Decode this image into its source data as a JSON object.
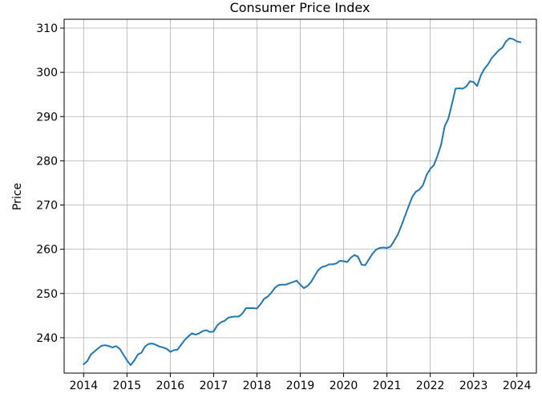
{
  "chart_data": {
    "type": "line",
    "title": "Consumer Price Index",
    "xlabel": "",
    "ylabel": "Price",
    "xlim": [
      2013.55,
      2024.45
    ],
    "ylim": [
      232.0,
      312.0
    ],
    "x_ticks": [
      "2014",
      "2015",
      "2016",
      "2017",
      "2018",
      "2019",
      "2020",
      "2021",
      "2022",
      "2023",
      "2024"
    ],
    "y_ticks": [
      "240",
      "250",
      "260",
      "270",
      "280",
      "290",
      "300",
      "310"
    ],
    "grid": true,
    "line_color": "#1f77b4",
    "series": [
      {
        "name": "",
        "points": [
          [
            "2014-01",
            234.0
          ],
          [
            "2014-02",
            234.7
          ],
          [
            "2014-03",
            236.2
          ],
          [
            "2014-04",
            236.9
          ],
          [
            "2014-05",
            237.6
          ],
          [
            "2014-06",
            238.2
          ],
          [
            "2014-07",
            238.3
          ],
          [
            "2014-08",
            238.1
          ],
          [
            "2014-09",
            237.8
          ],
          [
            "2014-10",
            238.1
          ],
          [
            "2014-11",
            237.5
          ],
          [
            "2014-12",
            236.2
          ],
          [
            "2015-01",
            234.9
          ],
          [
            "2015-02",
            233.8
          ],
          [
            "2015-03",
            234.8
          ],
          [
            "2015-04",
            236.2
          ],
          [
            "2015-05",
            236.6
          ],
          [
            "2015-06",
            238.0
          ],
          [
            "2015-07",
            238.6
          ],
          [
            "2015-08",
            238.7
          ],
          [
            "2015-09",
            238.4
          ],
          [
            "2015-10",
            238.0
          ],
          [
            "2015-11",
            237.8
          ],
          [
            "2015-12",
            237.5
          ],
          [
            "2016-01",
            236.8
          ],
          [
            "2016-02",
            237.2
          ],
          [
            "2016-03",
            237.3
          ],
          [
            "2016-04",
            238.4
          ],
          [
            "2016-05",
            239.5
          ],
          [
            "2016-06",
            240.3
          ],
          [
            "2016-07",
            241.0
          ],
          [
            "2016-08",
            240.7
          ],
          [
            "2016-09",
            241.0
          ],
          [
            "2016-10",
            241.5
          ],
          [
            "2016-11",
            241.7
          ],
          [
            "2016-12",
            241.3
          ],
          [
            "2017-01",
            241.4
          ],
          [
            "2017-02",
            242.8
          ],
          [
            "2017-03",
            243.5
          ],
          [
            "2017-04",
            243.8
          ],
          [
            "2017-05",
            244.5
          ],
          [
            "2017-06",
            244.7
          ],
          [
            "2017-07",
            244.8
          ],
          [
            "2017-08",
            244.8
          ],
          [
            "2017-09",
            245.5
          ],
          [
            "2017-10",
            246.7
          ],
          [
            "2017-11",
            246.7
          ],
          [
            "2017-12",
            246.7
          ],
          [
            "2018-01",
            246.6
          ],
          [
            "2018-02",
            247.6
          ],
          [
            "2018-03",
            248.8
          ],
          [
            "2018-04",
            249.3
          ],
          [
            "2018-05",
            250.2
          ],
          [
            "2018-06",
            251.3
          ],
          [
            "2018-07",
            251.9
          ],
          [
            "2018-08",
            252.0
          ],
          [
            "2018-09",
            252.0
          ],
          [
            "2018-10",
            252.3
          ],
          [
            "2018-11",
            252.6
          ],
          [
            "2018-12",
            252.9
          ],
          [
            "2019-01",
            252.0
          ],
          [
            "2019-02",
            251.2
          ],
          [
            "2019-03",
            251.7
          ],
          [
            "2019-04",
            252.6
          ],
          [
            "2019-05",
            254.0
          ],
          [
            "2019-06",
            255.3
          ],
          [
            "2019-07",
            256.0
          ],
          [
            "2019-08",
            256.2
          ],
          [
            "2019-09",
            256.6
          ],
          [
            "2019-10",
            256.6
          ],
          [
            "2019-11",
            256.8
          ],
          [
            "2019-12",
            257.4
          ],
          [
            "2020-01",
            257.3
          ],
          [
            "2020-02",
            257.1
          ],
          [
            "2020-03",
            258.1
          ],
          [
            "2020-04",
            258.7
          ],
          [
            "2020-05",
            258.3
          ],
          [
            "2020-06",
            256.5
          ],
          [
            "2020-07",
            256.4
          ],
          [
            "2020-08",
            257.7
          ],
          [
            "2020-09",
            259.0
          ],
          [
            "2020-10",
            259.9
          ],
          [
            "2020-11",
            260.3
          ],
          [
            "2020-12",
            260.4
          ],
          [
            "2021-01",
            260.3
          ],
          [
            "2021-02",
            260.6
          ],
          [
            "2021-03",
            261.9
          ],
          [
            "2021-04",
            263.3
          ],
          [
            "2021-05",
            265.3
          ],
          [
            "2021-06",
            267.5
          ],
          [
            "2021-07",
            269.7
          ],
          [
            "2021-08",
            271.8
          ],
          [
            "2021-09",
            273.0
          ],
          [
            "2021-10",
            273.5
          ],
          [
            "2021-11",
            274.5
          ],
          [
            "2021-12",
            276.8
          ],
          [
            "2022-01",
            278.2
          ],
          [
            "2022-02",
            279.0
          ],
          [
            "2022-03",
            281.1
          ],
          [
            "2022-04",
            283.6
          ],
          [
            "2022-05",
            287.8
          ],
          [
            "2022-06",
            289.5
          ],
          [
            "2022-07",
            292.8
          ],
          [
            "2022-08",
            296.3
          ],
          [
            "2022-09",
            296.4
          ],
          [
            "2022-10",
            296.3
          ],
          [
            "2022-11",
            296.8
          ],
          [
            "2022-12",
            298.0
          ],
          [
            "2023-01",
            297.8
          ],
          [
            "2023-02",
            296.9
          ],
          [
            "2023-03",
            299.3
          ],
          [
            "2023-04",
            300.8
          ],
          [
            "2023-05",
            301.8
          ],
          [
            "2023-06",
            303.2
          ],
          [
            "2023-07",
            304.1
          ],
          [
            "2023-08",
            305.0
          ],
          [
            "2023-09",
            305.6
          ],
          [
            "2023-10",
            307.0
          ],
          [
            "2023-11",
            307.7
          ],
          [
            "2023-12",
            307.5
          ],
          [
            "2024-01",
            307.0
          ],
          [
            "2024-02",
            306.8
          ]
        ]
      }
    ]
  }
}
